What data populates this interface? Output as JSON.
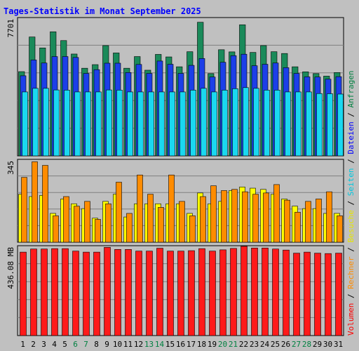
{
  "chart_data": {
    "type": "bar",
    "title": "Tages-Statistik im Monat September 2025",
    "x": [
      "1",
      "2",
      "3",
      "4",
      "5",
      "6",
      "7",
      "8",
      "9",
      "10",
      "11",
      "12",
      "13",
      "14",
      "15",
      "16",
      "17",
      "18",
      "19",
      "20",
      "21",
      "22",
      "23",
      "24",
      "25",
      "26",
      "27",
      "28",
      "29",
      "30",
      "31"
    ],
    "weekend_days": [
      "6",
      "7",
      "13",
      "14",
      "20",
      "21",
      "27",
      "28"
    ],
    "panels": [
      {
        "name": "top",
        "ymax_label": "7701",
        "ylim": [
          0,
          7701
        ],
        "series": [
          {
            "name": "Anfragen",
            "color": "#1a8a5a",
            "values": [
              4690,
              6620,
              6010,
              6910,
              6420,
              5670,
              4880,
              5080,
              6140,
              5730,
              4880,
              5530,
              4770,
              5650,
              5510,
              4960,
              5800,
              7440,
              4580,
              5910,
              5790,
              7300,
              5760,
              6140,
              5800,
              5700,
              4960,
              4680,
              4580,
              4440,
              4640
            ]
          },
          {
            "name": "Dateien",
            "color": "#1c3fe8",
            "values": [
              4460,
              5340,
              5170,
              5530,
              5530,
              5480,
              4590,
              4800,
              5160,
              5160,
              4640,
              5090,
              4590,
              5280,
              5100,
              4590,
              5040,
              5420,
              4390,
              5210,
              5580,
              5660,
              5020,
              5100,
              5170,
              4910,
              4590,
              4400,
              4390,
              4270,
              4410
            ]
          },
          {
            "name": "Seiten",
            "color": "#1ad8f0",
            "values": [
              3560,
              3760,
              3760,
              3670,
              3660,
              3560,
              3560,
              3560,
              3670,
              3660,
              3560,
              3560,
              3560,
              3560,
              3560,
              3560,
              3660,
              3760,
              3560,
              3660,
              3740,
              3800,
              3760,
              3660,
              3660,
              3560,
              3560,
              3560,
              3470,
              3460,
              3440
            ]
          }
        ]
      },
      {
        "name": "middle",
        "ymax_label": "345",
        "ylim": [
          0,
          345
        ],
        "series": [
          {
            "name": "Besuche",
            "color": "#ffff00",
            "values": [
              200,
              190,
              195,
              120,
              180,
              160,
              140,
              100,
              170,
              200,
              105,
              160,
              160,
              160,
              160,
              160,
              120,
              205,
              160,
              170,
              215,
              230,
              225,
              220,
              200,
              180,
              150,
              140,
              140,
              120,
              120
            ]
          },
          {
            "name": "Rechner",
            "color": "#ff8c00",
            "values": [
              270,
              335,
              320,
              110,
              190,
              150,
              170,
              95,
              160,
              250,
              120,
              280,
              200,
              145,
              280,
              170,
              110,
              190,
              235,
              215,
              220,
              210,
              200,
              205,
              240,
              175,
              125,
              170,
              180,
              210,
              110
            ]
          }
        ]
      },
      {
        "name": "bottom",
        "ymax_label": "436.08 MB",
        "ylim": [
          0,
          436.08
        ],
        "series": [
          {
            "name": "Volumen",
            "color": "#ff1a1a",
            "values": [
              405,
              420,
              420,
              422,
              422,
              410,
              405,
              405,
              428,
              418,
              418,
              410,
              410,
              424,
              410,
              410,
              412,
              422,
              410,
              416,
              423,
              433,
              425,
              425,
              420,
              415,
              400,
              405,
              400,
              398,
              400
            ]
          }
        ]
      }
    ],
    "legend_right": [
      "Volumen",
      "Rechner",
      "Besuche",
      "Seiten",
      "Dateien",
      "Anfragen"
    ],
    "legend_separator": " / ",
    "legend_colors": {
      "Volumen": "#ff0000",
      "Rechner": "#ff8c00",
      "Besuche": "#e6e600",
      "Seiten": "#00c8e0",
      "Dateien": "#0000ff",
      "Anfragen": "#008040"
    },
    "grid": true
  }
}
